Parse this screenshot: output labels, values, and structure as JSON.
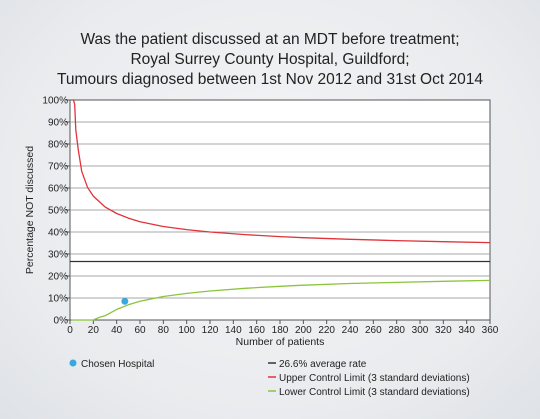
{
  "chart_data": {
    "type": "line",
    "title_lines": [
      "Was the patient discussed at an MDT before treatment;",
      "Royal Surrey County Hospital, Guildford;",
      "Tumours diagnosed between 1st Nov 2012 and 31st Oct 2014"
    ],
    "xlabel": "Number of patients",
    "ylabel": "Percentage NOT discussed",
    "xlim": [
      0,
      360
    ],
    "ylim": [
      0,
      100
    ],
    "x_ticks": [
      0,
      20,
      40,
      60,
      80,
      100,
      120,
      140,
      160,
      180,
      200,
      220,
      240,
      260,
      280,
      300,
      320,
      340,
      360
    ],
    "x_tick_labels": [
      "0",
      "20",
      "40",
      "60",
      "80",
      "100",
      "120",
      "140",
      "160",
      "180",
      "200",
      "220",
      "240",
      "260",
      "280",
      "300",
      "320",
      "340",
      "360"
    ],
    "y_ticks": [
      0,
      10,
      20,
      30,
      40,
      50,
      60,
      70,
      80,
      90,
      100
    ],
    "y_tick_labels": [
      "0%",
      "10%",
      "20%",
      "30%",
      "40%",
      "50%",
      "60%",
      "70%",
      "80%",
      "90%",
      "100%"
    ],
    "grid": "horizontal",
    "average_rate": 26.6,
    "series": [
      {
        "name": "Upper Control Limit (3 standard deviations)",
        "color": "#e0333a",
        "x": [
          1,
          2,
          3,
          4,
          5,
          7,
          10,
          15,
          20,
          30,
          40,
          50,
          60,
          80,
          100,
          120,
          150,
          180,
          200,
          240,
          280,
          320,
          360
        ],
        "y": [
          100,
          100,
          100,
          97.9,
          86.3,
          77.6,
          67.6,
          60.3,
          56.3,
          51.4,
          48.4,
          46.3,
          44.7,
          42.5,
          41.1,
          40.0,
          38.8,
          37.9,
          37.4,
          36.7,
          36.1,
          35.6,
          35.2
        ]
      },
      {
        "name": "Lower Control Limit (3 standard deviations)",
        "color": "#8cc43c",
        "x": [
          1,
          10,
          15,
          18,
          20,
          25,
          30,
          40,
          50,
          60,
          80,
          100,
          120,
          150,
          180,
          200,
          240,
          280,
          320,
          360
        ],
        "y": [
          0,
          0,
          0,
          0,
          0,
          1.2,
          1.9,
          4.8,
          6.9,
          8.5,
          10.7,
          12.1,
          13.2,
          14.4,
          15.3,
          15.8,
          16.6,
          17.1,
          17.6,
          18.0
        ]
      },
      {
        "name": "26.6% average rate",
        "color": "#333333",
        "x": [
          0,
          360
        ],
        "y": [
          26.6,
          26.6
        ]
      }
    ],
    "points": [
      {
        "name": "Chosen Hospital",
        "color": "#3aa8e0",
        "x": 47,
        "y": 8.5
      }
    ],
    "legend": {
      "placement": "bottom",
      "chosen_label": "Chosen Hospital",
      "average_label": "26.6% average rate",
      "upper_label": "Upper Control Limit (3 standard deviations)",
      "lower_label": "Lower Control Limit (3 standard deviations)"
    }
  }
}
